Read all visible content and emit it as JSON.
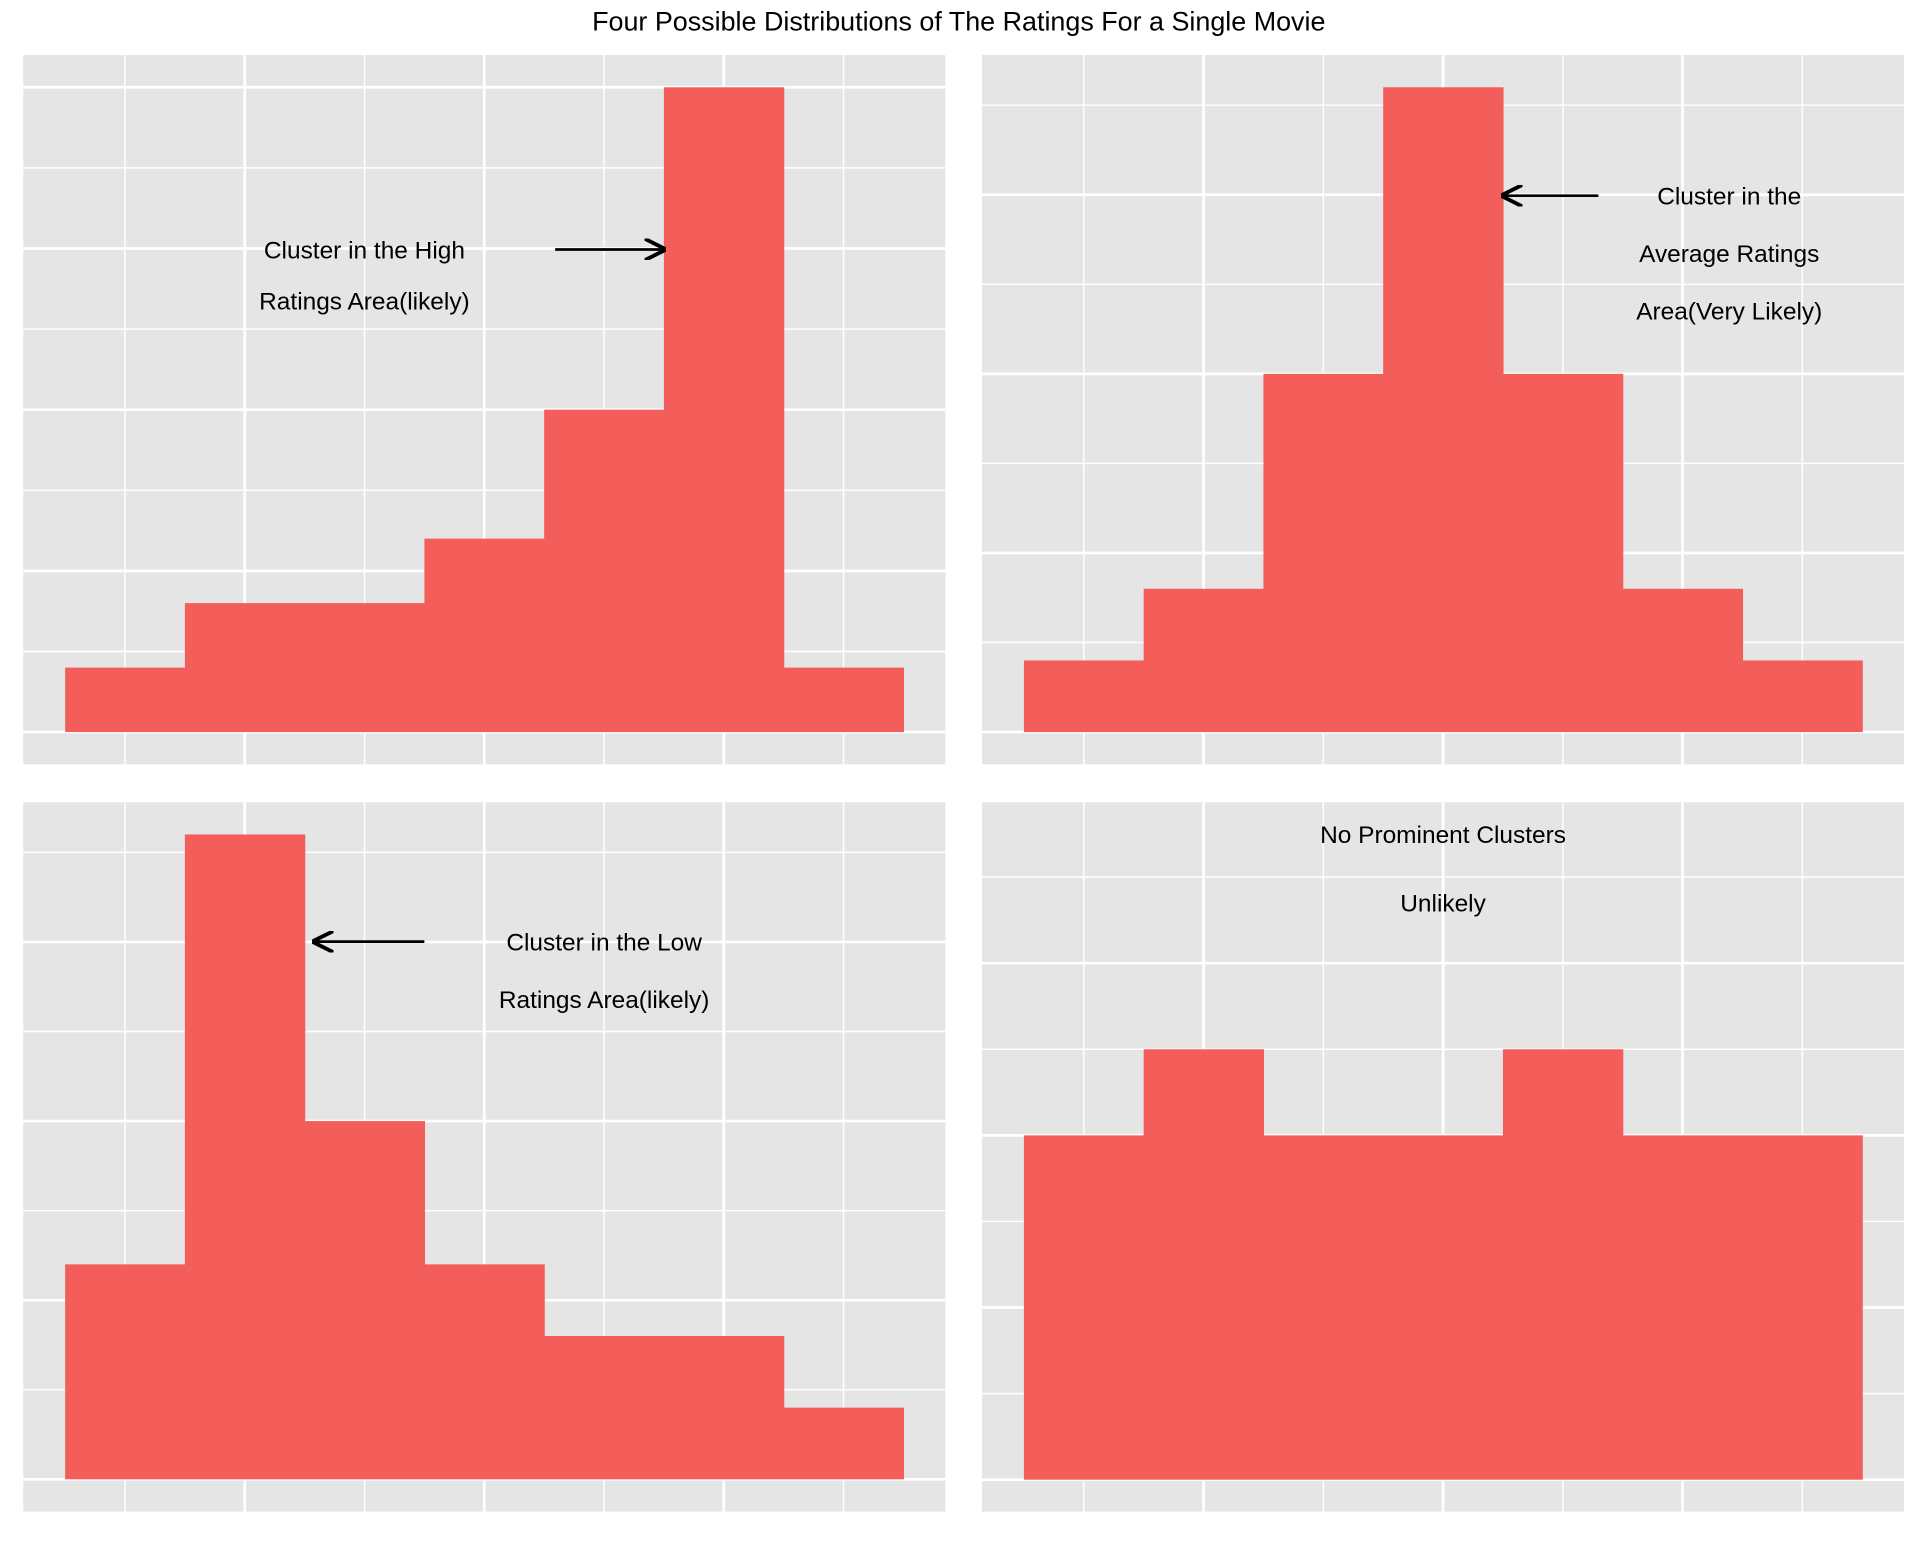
{
  "title": "Four Possible Distributions of The Ratings For a Single Movie",
  "chart_data": [
    {
      "type": "histogram",
      "bins": [
        0.5,
        1.5,
        2.5,
        3.5,
        4.5,
        5.5,
        6.5,
        7.5
      ],
      "values": [
        1,
        2,
        2,
        3,
        5,
        10,
        1
      ],
      "color": "#f35e5a",
      "xlim": [
        0.15,
        7.85
      ],
      "xticks": [
        2,
        4,
        6
      ],
      "xminor_ticks": [
        1,
        3,
        5,
        7
      ],
      "ylim": [
        -0.5,
        10.5
      ],
      "yticks": [
        0,
        2.5,
        5,
        7.5,
        10
      ],
      "yminor_ticks": [
        1.25,
        3.75,
        6.25,
        8.75
      ],
      "grid": true,
      "annotations": [
        "Cluster in the High",
        "Ratings Area(likely)"
      ]
    },
    {
      "type": "histogram",
      "bins": [
        0.5,
        1.5,
        2.5,
        3.5,
        4.5,
        5.5,
        6.5,
        7.5
      ],
      "values": [
        1,
        2,
        5,
        9,
        5,
        2,
        1
      ],
      "color": "#f35e5a",
      "xlim": [
        0.15,
        7.85
      ],
      "xticks": [
        2,
        4,
        6
      ],
      "xminor_ticks": [
        1,
        3,
        5,
        7
      ],
      "ylim": [
        -0.45,
        9.45
      ],
      "yticks": [
        0,
        2.5,
        5,
        7.5
      ],
      "yminor_ticks": [
        1.25,
        3.75,
        6.25,
        8.75
      ],
      "grid": true,
      "annotations": [
        "Cluster in the",
        "Average Ratings",
        "Area(Very Likely)"
      ]
    },
    {
      "type": "histogram",
      "bins": [
        0.5,
        1.5,
        2.5,
        3.5,
        4.5,
        5.5,
        6.5,
        7.5
      ],
      "values": [
        3,
        9,
        5,
        3,
        2,
        2,
        1
      ],
      "color": "#f35e5a",
      "xlim": [
        0.15,
        7.85
      ],
      "xticks": [
        2,
        4,
        6
      ],
      "xminor_ticks": [
        1,
        3,
        5,
        7
      ],
      "ylim": [
        -0.45,
        9.45
      ],
      "yticks": [
        0,
        2.5,
        5,
        7.5
      ],
      "yminor_ticks": [
        1.25,
        3.75,
        6.25,
        8.75
      ],
      "grid": true,
      "annotations": [
        "Cluster in the Low",
        "Ratings Area(likely)"
      ]
    },
    {
      "type": "histogram",
      "bins": [
        0.5,
        1.5,
        2.5,
        3.5,
        4.5,
        5.5,
        6.5,
        7.5
      ],
      "values": [
        4,
        5,
        4,
        4,
        5,
        4,
        4
      ],
      "color": "#f35e5a",
      "xlim": [
        0.15,
        7.85
      ],
      "xticks": [
        2,
        4,
        6
      ],
      "xminor_ticks": [
        1,
        3,
        5,
        7
      ],
      "ylim": [
        -0.37,
        7.87
      ],
      "yticks": [
        0,
        2,
        4,
        6
      ],
      "yminor_ticks": [
        1,
        3,
        5,
        7
      ],
      "grid": true,
      "annotations": [
        "No Prominent Clusters",
        "Unlikely"
      ]
    }
  ]
}
